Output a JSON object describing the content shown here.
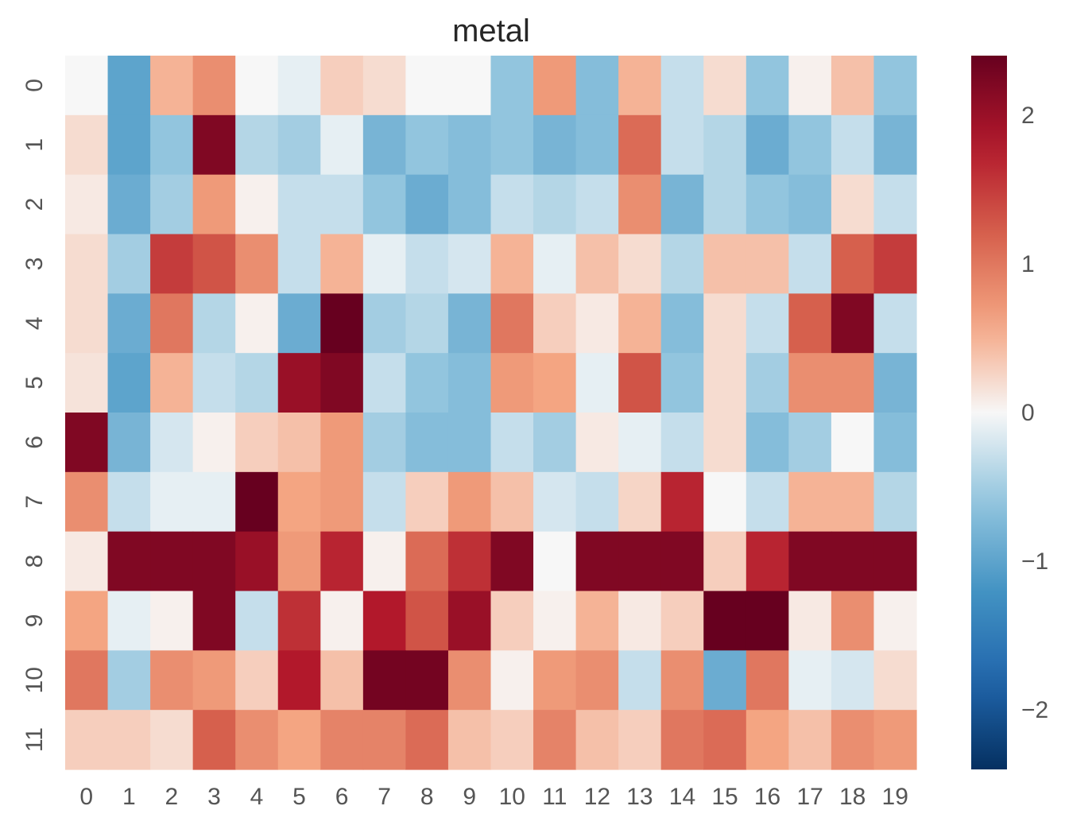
{
  "chart_data": {
    "type": "heatmap",
    "title": "metal",
    "xlabel": "",
    "ylabel": "",
    "x_categories": [
      "0",
      "1",
      "2",
      "3",
      "4",
      "5",
      "6",
      "7",
      "8",
      "9",
      "10",
      "11",
      "12",
      "13",
      "14",
      "15",
      "16",
      "17",
      "18",
      "19"
    ],
    "y_categories": [
      "0",
      "1",
      "2",
      "3",
      "4",
      "5",
      "6",
      "7",
      "8",
      "9",
      "10",
      "11"
    ],
    "colormap": "RdBu_r",
    "vmin": -2.4,
    "vmax": 2.4,
    "colorbar_ticks": [
      2,
      1,
      0,
      -1,
      -2
    ],
    "colorbar_tick_labels": [
      "2",
      "1",
      "0",
      "−1",
      "−2"
    ],
    "values": [
      [
        0.0,
        -1.0,
        0.5,
        0.8,
        0.0,
        -0.1,
        0.3,
        0.2,
        0.0,
        0.0,
        -0.6,
        0.7,
        -0.7,
        0.5,
        -0.3,
        0.2,
        -0.6,
        0.05,
        0.4,
        -0.6
      ],
      [
        0.2,
        -1.0,
        -0.6,
        2.2,
        -0.4,
        -0.5,
        -0.1,
        -0.8,
        -0.6,
        -0.7,
        -0.6,
        -0.8,
        -0.7,
        1.1,
        -0.3,
        -0.4,
        -0.9,
        -0.6,
        -0.3,
        -0.8
      ],
      [
        0.1,
        -0.9,
        -0.5,
        0.7,
        0.05,
        -0.3,
        -0.3,
        -0.6,
        -0.9,
        -0.7,
        -0.3,
        -0.4,
        -0.3,
        0.8,
        -0.8,
        -0.4,
        -0.6,
        -0.7,
        0.2,
        -0.3
      ],
      [
        0.2,
        -0.5,
        1.5,
        1.3,
        0.8,
        -0.3,
        0.5,
        -0.1,
        -0.3,
        -0.2,
        0.5,
        -0.1,
        0.4,
        0.2,
        -0.4,
        0.4,
        0.4,
        -0.3,
        1.2,
        1.5
      ],
      [
        0.2,
        -0.9,
        1.0,
        -0.4,
        0.05,
        -0.9,
        2.4,
        -0.5,
        -0.4,
        -0.8,
        1.0,
        0.3,
        0.1,
        0.5,
        -0.7,
        0.2,
        -0.3,
        1.2,
        2.2,
        -0.3
      ],
      [
        0.15,
        -1.0,
        0.5,
        -0.3,
        -0.4,
        2.0,
        2.2,
        -0.3,
        -0.6,
        -0.7,
        0.7,
        0.6,
        -0.1,
        1.3,
        -0.6,
        0.2,
        -0.5,
        0.8,
        0.8,
        -0.8
      ],
      [
        2.2,
        -0.8,
        -0.2,
        0.05,
        0.3,
        0.4,
        0.7,
        -0.5,
        -0.7,
        -0.7,
        -0.3,
        -0.5,
        0.1,
        -0.1,
        -0.3,
        0.2,
        -0.7,
        -0.5,
        0.0,
        -0.7
      ],
      [
        0.8,
        -0.3,
        -0.1,
        -0.1,
        2.4,
        0.6,
        0.7,
        -0.3,
        0.3,
        0.7,
        0.4,
        -0.2,
        -0.3,
        0.25,
        1.7,
        0.0,
        -0.3,
        0.5,
        0.5,
        -0.4
      ],
      [
        0.1,
        2.2,
        2.2,
        2.2,
        2.0,
        0.7,
        1.7,
        0.05,
        1.1,
        1.6,
        2.2,
        0.0,
        2.2,
        2.2,
        2.2,
        0.3,
        1.7,
        2.2,
        2.2,
        2.2
      ],
      [
        0.6,
        -0.1,
        0.05,
        2.2,
        -0.3,
        1.6,
        0.05,
        1.8,
        1.3,
        2.0,
        0.3,
        0.05,
        0.5,
        0.1,
        0.3,
        2.5,
        2.5,
        0.1,
        0.8,
        0.05
      ],
      [
        1.0,
        -0.5,
        0.8,
        0.7,
        0.3,
        1.8,
        0.4,
        2.3,
        2.3,
        0.8,
        0.05,
        0.7,
        0.8,
        -0.3,
        0.8,
        -0.9,
        1.0,
        -0.1,
        -0.2,
        0.2
      ],
      [
        0.3,
        0.3,
        0.2,
        1.2,
        0.8,
        0.6,
        0.9,
        0.9,
        1.1,
        0.4,
        0.3,
        0.9,
        0.4,
        0.3,
        1.0,
        1.1,
        0.6,
        0.4,
        0.8,
        0.7
      ]
    ]
  }
}
